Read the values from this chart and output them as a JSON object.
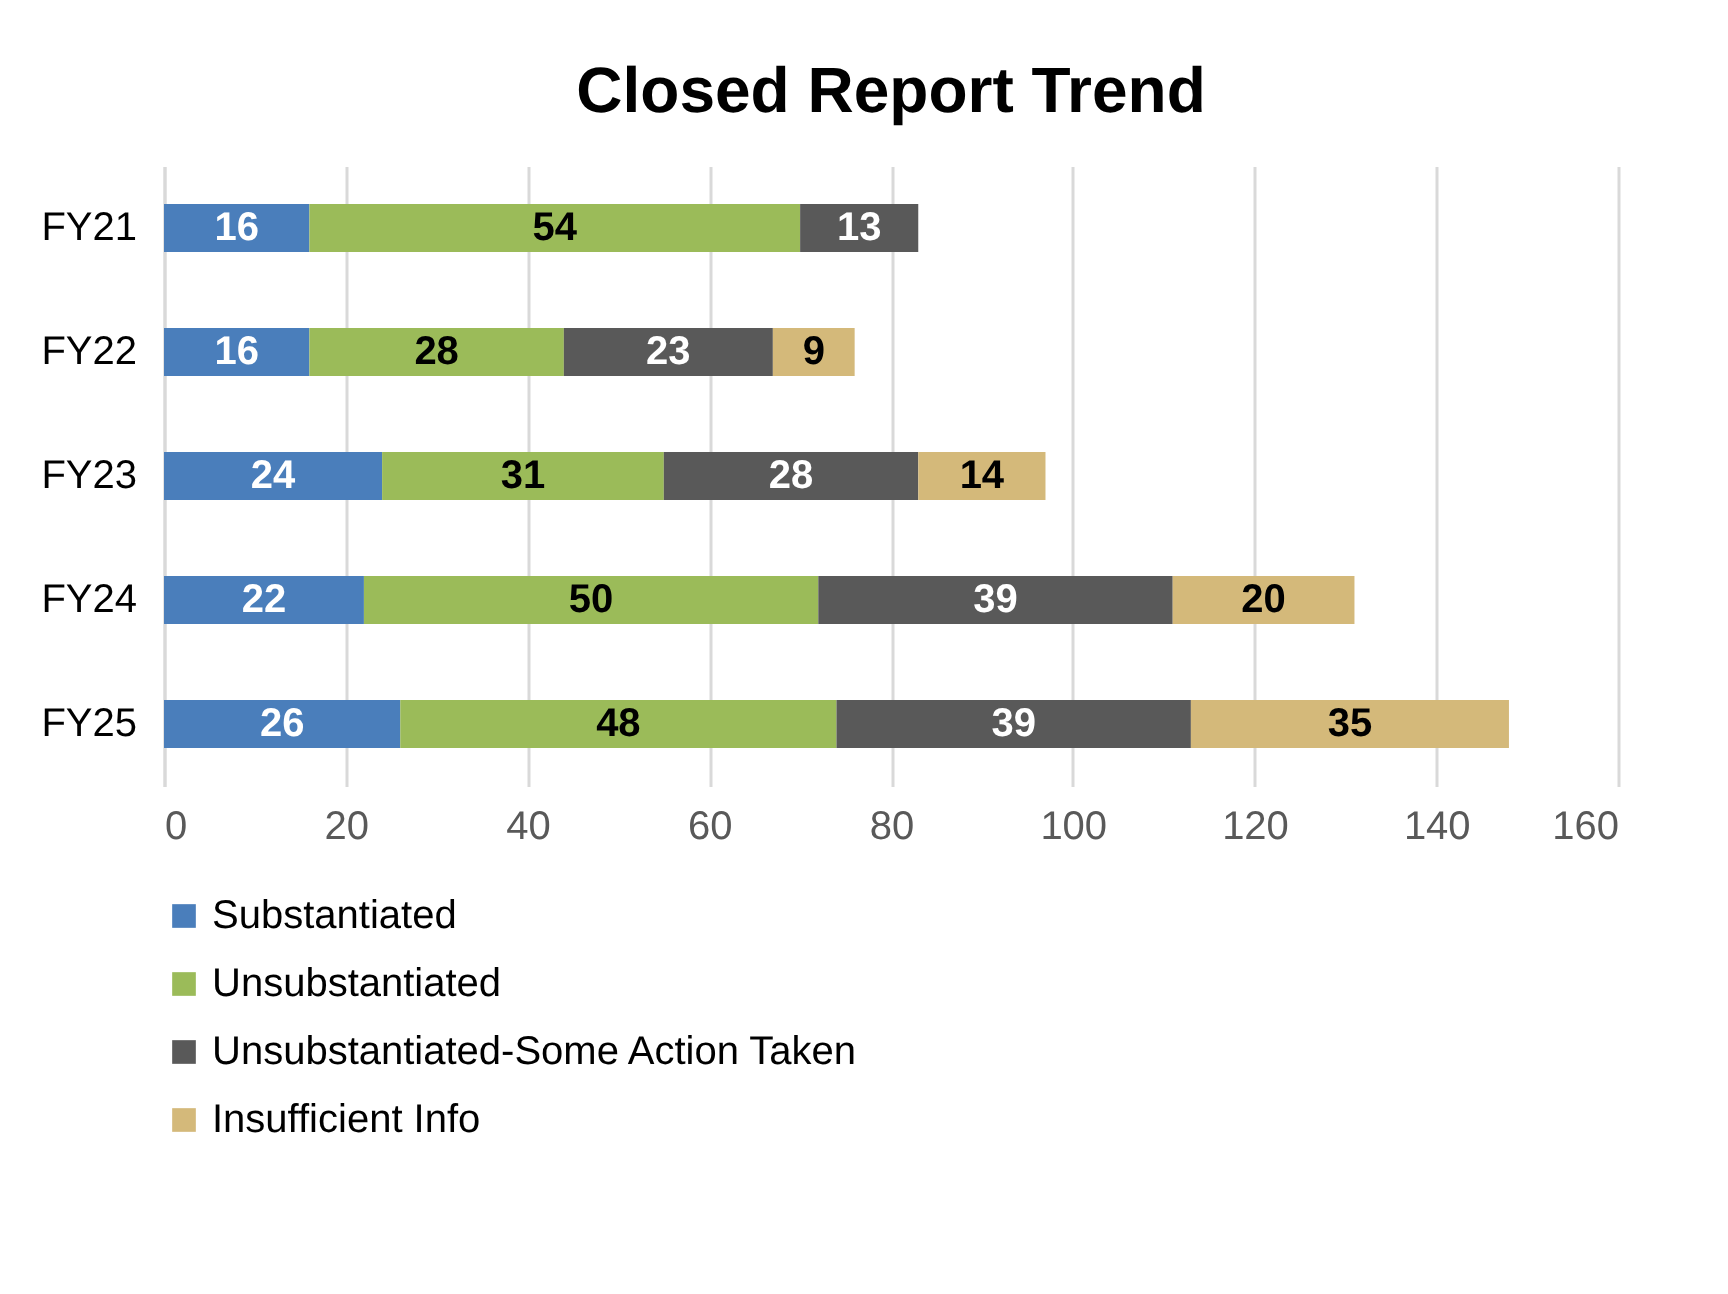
{
  "chart_data": {
    "type": "bar",
    "orientation": "horizontal",
    "stacked": true,
    "title": "Closed Report Trend",
    "categories": [
      "FY21",
      "FY22",
      "FY23",
      "FY24",
      "FY25"
    ],
    "series": [
      {
        "name": "Substantiated",
        "color": "#4a7ebb",
        "values": [
          16,
          16,
          24,
          22,
          26
        ]
      },
      {
        "name": "Unsubstantiated",
        "color": "#9bbb59",
        "values": [
          54,
          28,
          31,
          50,
          48
        ]
      },
      {
        "name": "Unsubstantiated-Some Action Taken",
        "color": "#595959",
        "values": [
          13,
          23,
          28,
          39,
          39
        ]
      },
      {
        "name": "Insufficient Info",
        "color": "#d4b97a",
        "values": [
          null,
          9,
          14,
          20,
          35
        ]
      }
    ],
    "xlim": [
      0,
      160
    ],
    "xticks": [
      0,
      20,
      40,
      60,
      80,
      100,
      120,
      140,
      160
    ],
    "grid": "x",
    "legend": "bottom",
    "data_labels": true
  }
}
